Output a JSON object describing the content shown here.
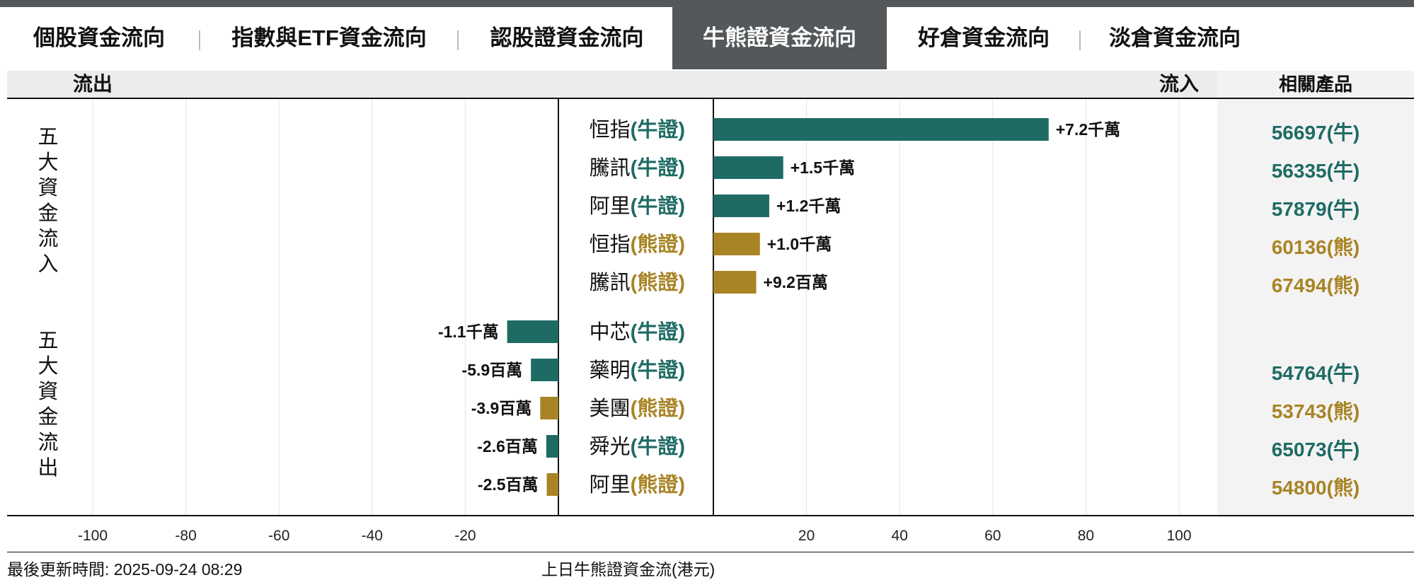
{
  "tabs": [
    {
      "label": "個股資金流向",
      "active": false
    },
    {
      "label": "指數與ETF資金流向",
      "active": false
    },
    {
      "label": "認股證資金流向",
      "active": false
    },
    {
      "label": "牛熊證資金流向",
      "active": true
    },
    {
      "label": "好倉資金流向",
      "active": false
    },
    {
      "label": "淡倉資金流向",
      "active": false
    }
  ],
  "header": {
    "outflow": "流出",
    "inflow": "流入",
    "related": "相關產品"
  },
  "group_labels": {
    "inflow": [
      "五",
      "大",
      "資",
      "金",
      "流",
      "入"
    ],
    "outflow": [
      "五",
      "大",
      "資",
      "金",
      "流",
      "出"
    ]
  },
  "colors": {
    "bull": "#1e6b64",
    "bear": "#a88425",
    "active_tab": "#54585a"
  },
  "footer": {
    "updated": "最後更新時間: 2025-09-24 08:29",
    "caption": "上日牛熊證資金流(港元)"
  },
  "chart_data": {
    "type": "bar",
    "orientation": "horizontal",
    "unit": "百萬港元",
    "xlim": [
      -100,
      100
    ],
    "x_ticks": [
      "-100",
      "-80",
      "-60",
      "-40",
      "-20",
      "20",
      "40",
      "60",
      "80",
      "100"
    ],
    "grid": true,
    "rows": [
      {
        "stock": "恒指",
        "kind": "(牛證)",
        "type": "bull",
        "value": 72,
        "label": "+7.2千萬",
        "related": "56697(牛)"
      },
      {
        "stock": "騰訊",
        "kind": "(牛證)",
        "type": "bull",
        "value": 15,
        "label": "+1.5千萬",
        "related": "56335(牛)"
      },
      {
        "stock": "阿里",
        "kind": "(牛證)",
        "type": "bull",
        "value": 12,
        "label": "+1.2千萬",
        "related": "57879(牛)"
      },
      {
        "stock": "恒指",
        "kind": "(熊證)",
        "type": "bear",
        "value": 10,
        "label": "+1.0千萬",
        "related": "60136(熊)"
      },
      {
        "stock": "騰訊",
        "kind": "(熊證)",
        "type": "bear",
        "value": 9.2,
        "label": "+9.2百萬",
        "related": "67494(熊)"
      },
      {
        "stock": "中芯",
        "kind": "(牛證)",
        "type": "bull",
        "value": -11,
        "label": "-1.1千萬",
        "related": ""
      },
      {
        "stock": "藥明",
        "kind": "(牛證)",
        "type": "bull",
        "value": -5.9,
        "label": "-5.9百萬",
        "related": "54764(牛)"
      },
      {
        "stock": "美團",
        "kind": "(熊證)",
        "type": "bear",
        "value": -3.9,
        "label": "-3.9百萬",
        "related": "53743(熊)"
      },
      {
        "stock": "舜光",
        "kind": "(牛證)",
        "type": "bull",
        "value": -2.6,
        "label": "-2.6百萬",
        "related": "65073(牛)"
      },
      {
        "stock": "阿里",
        "kind": "(熊證)",
        "type": "bear",
        "value": -2.5,
        "label": "-2.5百萬",
        "related": "54800(熊)"
      }
    ]
  }
}
